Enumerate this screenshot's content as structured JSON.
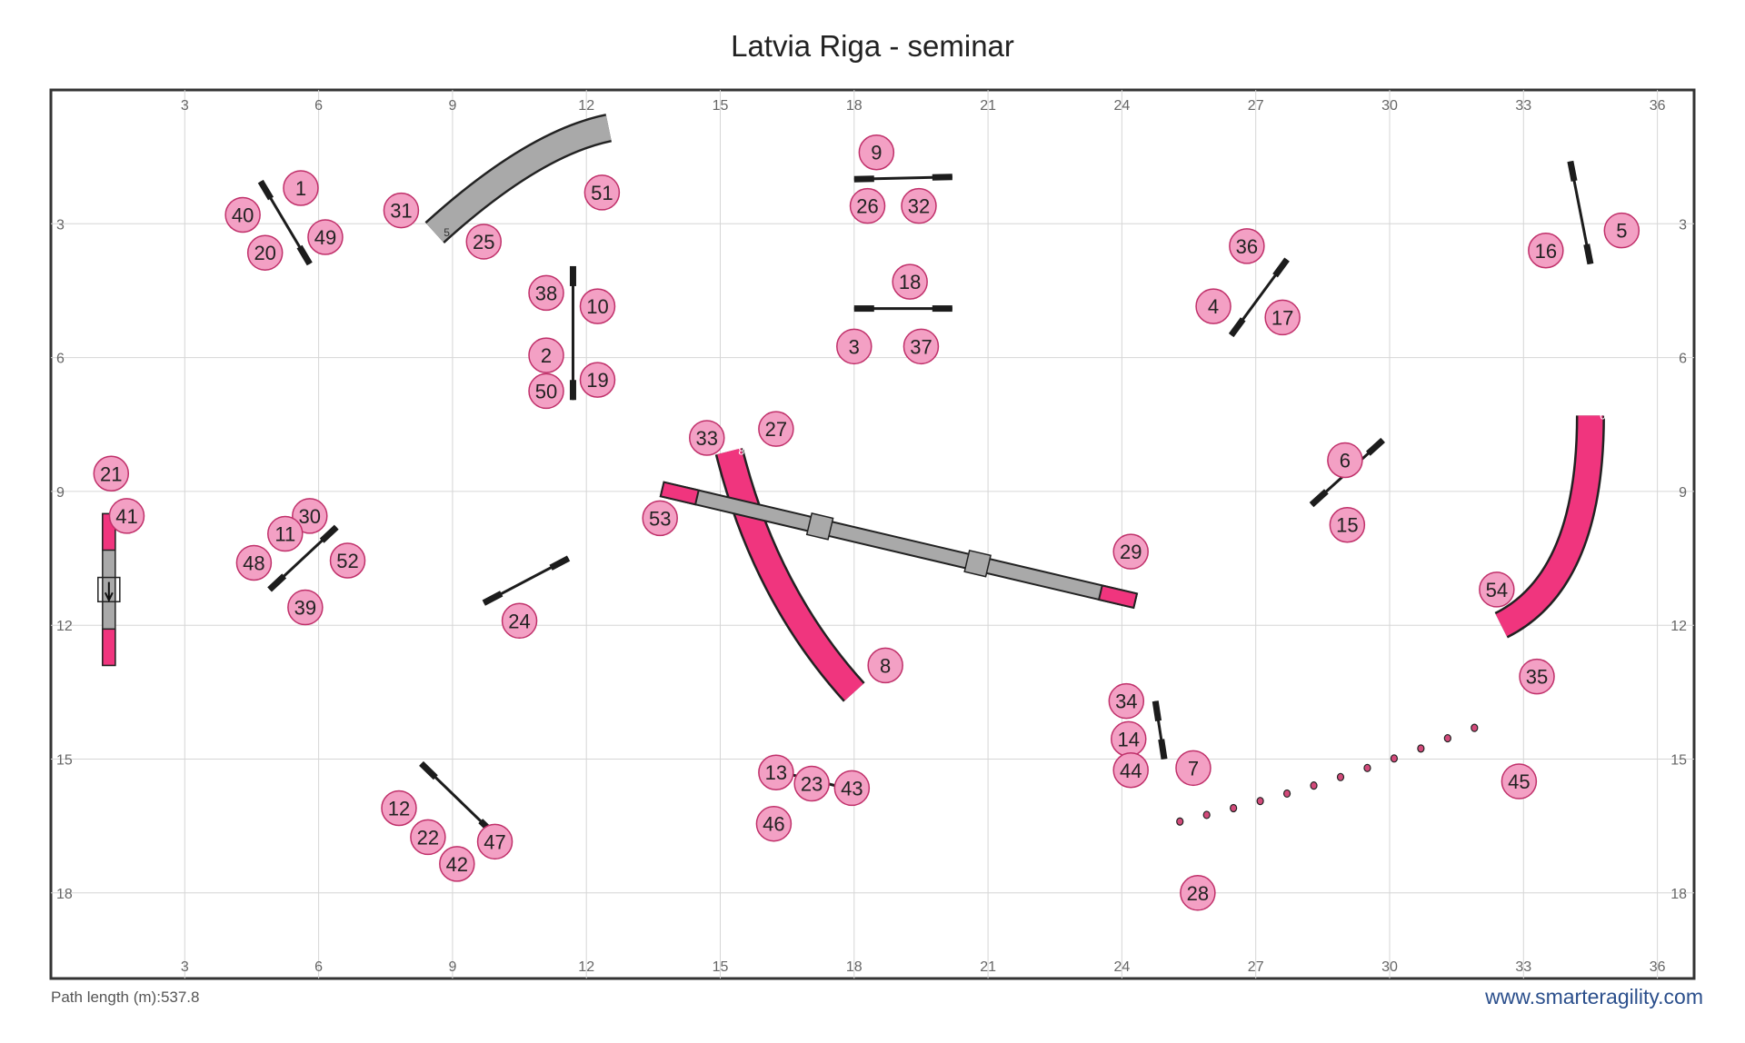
{
  "title": "Latvia Riga - seminar",
  "footer": {
    "path_length": "Path length (m):537.8",
    "website": "www.smarteragility.com"
  },
  "grid": {
    "x_range": [
      0,
      37
    ],
    "y_range": [
      0,
      20
    ],
    "x_ticks": [
      "3",
      "6",
      "9",
      "12",
      "15",
      "18",
      "21",
      "24",
      "27",
      "30",
      "33",
      "36"
    ],
    "y_ticks": [
      "3",
      "6",
      "9",
      "12",
      "15",
      "18"
    ]
  },
  "colors": {
    "number_fill": "#f3a0c4",
    "number_stroke": "#c0306a",
    "contact_pink": "#f0357e",
    "obstacle_gray": "#a9a9a9",
    "pole": "#1c1c1c"
  },
  "tunnels": [
    {
      "label": "5",
      "color": "gray",
      "path": [
        [
          8.6,
          3.2
        ],
        [
          10.8,
          1.2
        ],
        [
          12.5,
          0.85
        ]
      ]
    },
    {
      "label": "8",
      "color": "pink",
      "path": [
        [
          15.2,
          8.1
        ],
        [
          16.0,
          11.3
        ],
        [
          18.0,
          13.5
        ]
      ]
    },
    {
      "label": "6",
      "color": "pink",
      "path": [
        [
          34.5,
          7.3
        ],
        [
          34.5,
          11.0
        ],
        [
          32.5,
          12.0
        ]
      ]
    }
  ],
  "jumps": [
    {
      "from": [
        4.7,
        2.05
      ],
      "to": [
        5.8,
        3.9
      ]
    },
    {
      "from": [
        18.0,
        2.0
      ],
      "to": [
        20.2,
        1.95
      ]
    },
    {
      "from": [
        11.7,
        3.95
      ],
      "to": [
        11.7,
        6.95
      ]
    },
    {
      "from": [
        18.0,
        4.9
      ],
      "to": [
        20.2,
        4.9
      ]
    },
    {
      "from": [
        34.05,
        1.6
      ],
      "to": [
        34.5,
        3.9
      ]
    },
    {
      "from": [
        26.45,
        5.5
      ],
      "to": [
        27.7,
        3.8
      ]
    },
    {
      "from": [
        28.25,
        9.3
      ],
      "to": [
        29.85,
        7.85
      ]
    },
    {
      "from": [
        4.9,
        11.2
      ],
      "to": [
        6.4,
        9.8
      ]
    },
    {
      "from": [
        9.7,
        11.5
      ],
      "to": [
        11.6,
        10.5
      ]
    },
    {
      "from": [
        24.75,
        13.7
      ],
      "to": [
        24.95,
        15.0
      ]
    },
    {
      "from": [
        16.0,
        15.2
      ],
      "to": [
        18.0,
        15.7
      ]
    },
    {
      "from": [
        8.3,
        15.1
      ],
      "to": [
        9.95,
        16.7
      ]
    }
  ],
  "dogwalk": {
    "from": [
      13.7,
      8.95
    ],
    "to": [
      24.3,
      11.45
    ],
    "contact_len": 0.8
  },
  "aframe": {
    "x": 1.3,
    "y_top": 9.5,
    "y_bottom": 12.9
  },
  "weave_poles": {
    "from": [
      25.3,
      16.4
    ],
    "to": [
      31.9,
      14.3
    ],
    "count": 12
  },
  "numbers": [
    {
      "n": "1",
      "x": 5.6,
      "y": 2.2
    },
    {
      "n": "40",
      "x": 4.3,
      "y": 2.8
    },
    {
      "n": "20",
      "x": 4.8,
      "y": 3.65
    },
    {
      "n": "49",
      "x": 6.15,
      "y": 3.3
    },
    {
      "n": "31",
      "x": 7.85,
      "y": 2.7
    },
    {
      "n": "25",
      "x": 9.7,
      "y": 3.4
    },
    {
      "n": "51",
      "x": 12.35,
      "y": 2.3
    },
    {
      "n": "9",
      "x": 18.5,
      "y": 1.4
    },
    {
      "n": "26",
      "x": 18.3,
      "y": 2.6
    },
    {
      "n": "32",
      "x": 19.45,
      "y": 2.6
    },
    {
      "n": "18",
      "x": 19.25,
      "y": 4.3
    },
    {
      "n": "3",
      "x": 18.0,
      "y": 5.75
    },
    {
      "n": "37",
      "x": 19.5,
      "y": 5.75
    },
    {
      "n": "38",
      "x": 11.1,
      "y": 4.55
    },
    {
      "n": "10",
      "x": 12.25,
      "y": 4.85
    },
    {
      "n": "2",
      "x": 11.1,
      "y": 5.95
    },
    {
      "n": "19",
      "x": 12.25,
      "y": 6.5
    },
    {
      "n": "50",
      "x": 11.1,
      "y": 6.75
    },
    {
      "n": "33",
      "x": 14.7,
      "y": 7.8
    },
    {
      "n": "27",
      "x": 16.25,
      "y": 7.6
    },
    {
      "n": "53",
      "x": 13.65,
      "y": 9.6
    },
    {
      "n": "29",
      "x": 24.2,
      "y": 10.35
    },
    {
      "n": "8",
      "x": 18.7,
      "y": 12.9
    },
    {
      "n": "36",
      "x": 26.8,
      "y": 3.5
    },
    {
      "n": "4",
      "x": 26.05,
      "y": 4.85
    },
    {
      "n": "17",
      "x": 27.6,
      "y": 5.1
    },
    {
      "n": "16",
      "x": 33.5,
      "y": 3.6
    },
    {
      "n": "5",
      "x": 35.2,
      "y": 3.15
    },
    {
      "n": "6",
      "x": 29.0,
      "y": 8.3
    },
    {
      "n": "15",
      "x": 29.05,
      "y": 9.75
    },
    {
      "n": "54",
      "x": 32.4,
      "y": 11.2
    },
    {
      "n": "35",
      "x": 33.3,
      "y": 13.15
    },
    {
      "n": "21",
      "x": 1.35,
      "y": 8.6
    },
    {
      "n": "41",
      "x": 1.7,
      "y": 9.55
    },
    {
      "n": "30",
      "x": 5.8,
      "y": 9.55
    },
    {
      "n": "11",
      "x": 5.25,
      "y": 9.95
    },
    {
      "n": "48",
      "x": 4.55,
      "y": 10.6
    },
    {
      "n": "52",
      "x": 6.65,
      "y": 10.55
    },
    {
      "n": "39",
      "x": 5.7,
      "y": 11.6
    },
    {
      "n": "24",
      "x": 10.5,
      "y": 11.9
    },
    {
      "n": "34",
      "x": 24.1,
      "y": 13.7
    },
    {
      "n": "14",
      "x": 24.15,
      "y": 14.55
    },
    {
      "n": "44",
      "x": 24.2,
      "y": 15.25
    },
    {
      "n": "7",
      "x": 25.6,
      "y": 15.2
    },
    {
      "n": "13",
      "x": 16.25,
      "y": 15.3
    },
    {
      "n": "23",
      "x": 17.05,
      "y": 15.55
    },
    {
      "n": "43",
      "x": 17.95,
      "y": 15.65
    },
    {
      "n": "46",
      "x": 16.2,
      "y": 16.45
    },
    {
      "n": "45",
      "x": 32.9,
      "y": 15.5
    },
    {
      "n": "28",
      "x": 25.7,
      "y": 18.0
    },
    {
      "n": "12",
      "x": 7.8,
      "y": 16.1
    },
    {
      "n": "22",
      "x": 8.45,
      "y": 16.75
    },
    {
      "n": "42",
      "x": 9.1,
      "y": 17.35
    },
    {
      "n": "47",
      "x": 9.95,
      "y": 16.85
    }
  ]
}
